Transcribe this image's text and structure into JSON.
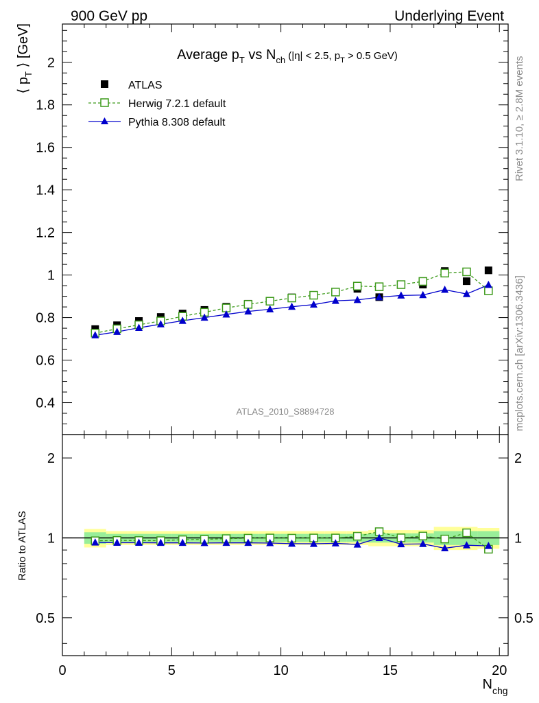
{
  "header": {
    "left_label": "900 GeV pp",
    "right_label": "Underlying Event"
  },
  "side_labels": {
    "rivet": "Rivet 3.1.10, ≥ 2.8M events",
    "mcplots": "mcplots.cern.ch [arXiv:1306.3436]"
  },
  "chart_data": {
    "type": "line",
    "title": {
      "prefix": "Average p",
      "prefix_sub": "T",
      "middle": " vs N",
      "middle_sub": "ch",
      "cut_open": " (|η| < 2.5, p",
      "cut_sub": "T",
      "cut_close": " > 0.5 GeV)"
    },
    "analysis_id": "ATLAS_2010_S8894728",
    "ylabel": {
      "main": "⟨ p",
      "sub": "T",
      "tail": " ⟩ [GeV]"
    },
    "xlabel": {
      "main": "N",
      "sub": "chg"
    },
    "ratio_ylabel": "Ratio to ATLAS",
    "xlim": [
      0,
      20.4
    ],
    "ylim": [
      0.25,
      2.18
    ],
    "ratio_ylim": [
      0.36,
      2.45
    ],
    "ratio_log": true,
    "x_ticks": [
      "0",
      "5",
      "10",
      "15",
      "20"
    ],
    "y_ticks": [
      "0.4",
      "0.6",
      "0.8",
      "1",
      "1.2",
      "1.4",
      "1.6",
      "1.8",
      "2"
    ],
    "ratio_ticks": [
      "0.5",
      "1",
      "2"
    ],
    "x": [
      1.5,
      2.5,
      3.5,
      4.5,
      5.5,
      6.5,
      7.5,
      8.5,
      9.5,
      10.5,
      11.5,
      12.5,
      13.5,
      14.5,
      15.5,
      16.5,
      17.5,
      18.5,
      19.5
    ],
    "x_bins": [
      [
        1,
        2
      ],
      [
        2,
        3
      ],
      [
        3,
        4
      ],
      [
        4,
        5
      ],
      [
        5,
        6
      ],
      [
        6,
        7
      ],
      [
        7,
        8
      ],
      [
        8,
        9
      ],
      [
        9,
        10
      ],
      [
        10,
        11
      ],
      [
        11,
        12
      ],
      [
        12,
        13
      ],
      [
        13,
        14
      ],
      [
        14,
        15
      ],
      [
        15,
        16
      ],
      [
        16,
        17
      ],
      [
        17,
        18
      ],
      [
        18,
        19
      ],
      [
        19,
        20
      ]
    ],
    "legend_position": "top-left",
    "series": [
      {
        "name": "ATLAS",
        "marker": "filled-square",
        "color": "#000000",
        "values": [
          0.746,
          0.764,
          0.784,
          0.803,
          0.819,
          0.836,
          0.851,
          0.865,
          0.878,
          0.895,
          0.906,
          0.921,
          0.935,
          0.896,
          0.955,
          0.955,
          1.019,
          0.971,
          1.022
        ],
        "ratio_band_stat": [
          0.05,
          0.035,
          0.035,
          0.035,
          0.035,
          0.035,
          0.035,
          0.035,
          0.035,
          0.035,
          0.035,
          0.035,
          0.035,
          0.04,
          0.04,
          0.04,
          0.06,
          0.06,
          0.06
        ],
        "ratio_band_total": [
          0.08,
          0.06,
          0.06,
          0.06,
          0.06,
          0.06,
          0.06,
          0.06,
          0.06,
          0.06,
          0.06,
          0.06,
          0.06,
          0.07,
          0.07,
          0.07,
          0.1,
          0.1,
          0.09
        ]
      },
      {
        "name": "Herwig 7.2.1 default",
        "marker": "open-square",
        "line": "dashed",
        "color": "#3c9a1a",
        "values": [
          0.727,
          0.747,
          0.766,
          0.784,
          0.806,
          0.825,
          0.845,
          0.862,
          0.877,
          0.892,
          0.905,
          0.92,
          0.948,
          0.945,
          0.955,
          0.97,
          1.009,
          1.015,
          0.926
        ],
        "ratio": [
          0.975,
          0.978,
          0.977,
          0.976,
          0.984,
          0.987,
          0.993,
          0.997,
          0.999,
          0.997,
          0.999,
          0.999,
          1.014,
          1.055,
          1.0,
          1.016,
          0.99,
          1.045,
          0.906
        ]
      },
      {
        "name": "Pythia 8.308 default",
        "marker": "filled-triangle",
        "line": "solid",
        "color": "#0000cc",
        "values": [
          0.717,
          0.733,
          0.752,
          0.769,
          0.785,
          0.8,
          0.815,
          0.829,
          0.839,
          0.851,
          0.861,
          0.879,
          0.883,
          0.896,
          0.904,
          0.906,
          0.931,
          0.911,
          0.954
        ],
        "ratio": [
          0.961,
          0.959,
          0.959,
          0.958,
          0.958,
          0.957,
          0.958,
          0.958,
          0.956,
          0.951,
          0.95,
          0.954,
          0.944,
          1.0,
          0.947,
          0.949,
          0.914,
          0.938,
          0.933
        ]
      }
    ]
  }
}
